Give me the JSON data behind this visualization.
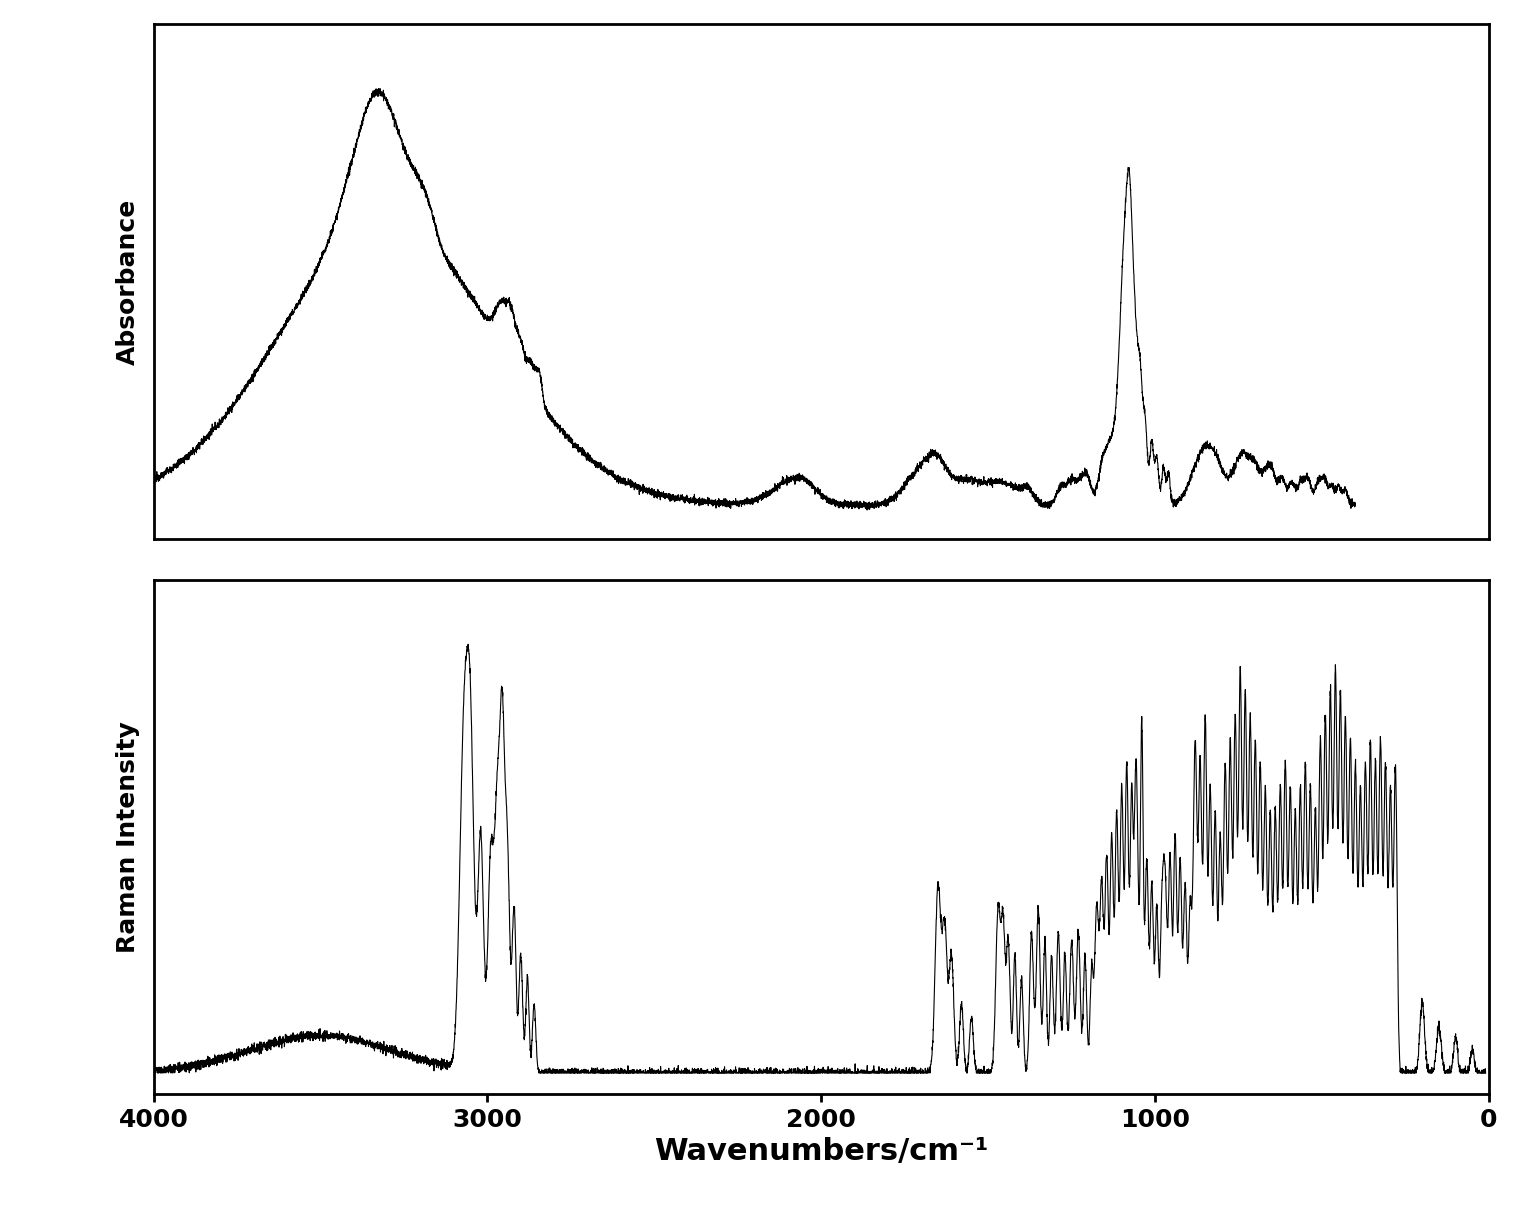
{
  "xlabel": "Wavenumbers/cm⁻¹",
  "ylabel_top": "Absorbance",
  "ylabel_bottom": "Raman Intensity",
  "xlim": [
    4000,
    0
  ],
  "xticks": [
    4000,
    3000,
    2000,
    1000,
    0
  ],
  "background_color": "#ffffff",
  "line_color": "#000000",
  "line_width": 0.8,
  "xlabel_fontsize": 22,
  "ylabel_fontsize": 18,
  "tick_fontsize": 18
}
